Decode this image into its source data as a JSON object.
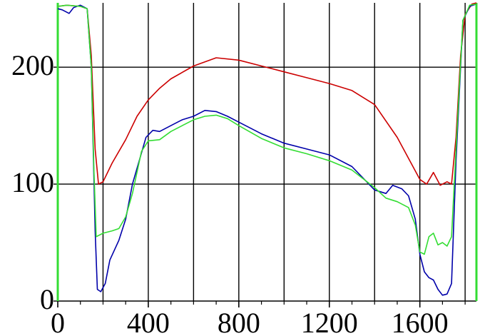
{
  "chart_data": {
    "type": "line",
    "title": "",
    "xlabel": "",
    "ylabel": "",
    "xlim": [
      0,
      1850
    ],
    "ylim": [
      0,
      255
    ],
    "grid": true,
    "x_ticks": [
      0,
      400,
      800,
      1200,
      1600
    ],
    "x_tick_labels": [
      "0",
      "400",
      "800",
      "1200",
      "1600"
    ],
    "x_minor_ticks": [
      100,
      200,
      300,
      500,
      600,
      700,
      900,
      1000,
      1100,
      1300,
      1400,
      1500,
      1700,
      1800
    ],
    "x_gridlines": [
      200,
      400,
      600,
      800,
      1000,
      1200,
      1400,
      1600,
      1800
    ],
    "y_ticks": [
      0,
      100,
      200
    ],
    "y_tick_labels": [
      "0",
      "100",
      "200"
    ],
    "y_gridlines": [
      100,
      200
    ],
    "edge_markers": {
      "color": "#33dd33",
      "x": [
        0,
        1850
      ]
    },
    "series": [
      {
        "color": "#cc0000",
        "points": [
          [
            0,
            252
          ],
          [
            40,
            253
          ],
          [
            100,
            252
          ],
          [
            130,
            250
          ],
          [
            148,
            210
          ],
          [
            165,
            130
          ],
          [
            180,
            100
          ],
          [
            200,
            102
          ],
          [
            240,
            118
          ],
          [
            300,
            138
          ],
          [
            350,
            158
          ],
          [
            400,
            172
          ],
          [
            450,
            182
          ],
          [
            500,
            190
          ],
          [
            600,
            201
          ],
          [
            700,
            208
          ],
          [
            800,
            206
          ],
          [
            900,
            201
          ],
          [
            1000,
            196
          ],
          [
            1100,
            191
          ],
          [
            1200,
            186
          ],
          [
            1300,
            180
          ],
          [
            1400,
            168
          ],
          [
            1500,
            140
          ],
          [
            1600,
            104
          ],
          [
            1630,
            100
          ],
          [
            1660,
            110
          ],
          [
            1690,
            99
          ],
          [
            1720,
            102
          ],
          [
            1740,
            100
          ],
          [
            1760,
            140
          ],
          [
            1780,
            210
          ],
          [
            1800,
            245
          ],
          [
            1830,
            254
          ],
          [
            1850,
            255
          ]
        ]
      },
      {
        "color": "#0000aa",
        "points": [
          [
            0,
            250
          ],
          [
            20,
            249
          ],
          [
            50,
            246
          ],
          [
            70,
            251
          ],
          [
            100,
            253
          ],
          [
            130,
            250
          ],
          [
            148,
            200
          ],
          [
            158,
            120
          ],
          [
            165,
            60
          ],
          [
            175,
            10
          ],
          [
            190,
            8
          ],
          [
            210,
            15
          ],
          [
            230,
            35
          ],
          [
            270,
            52
          ],
          [
            300,
            70
          ],
          [
            330,
            100
          ],
          [
            360,
            120
          ],
          [
            390,
            140
          ],
          [
            420,
            146
          ],
          [
            450,
            145
          ],
          [
            500,
            150
          ],
          [
            550,
            155
          ],
          [
            600,
            158
          ],
          [
            650,
            163
          ],
          [
            700,
            162
          ],
          [
            750,
            158
          ],
          [
            800,
            153
          ],
          [
            900,
            143
          ],
          [
            1000,
            135
          ],
          [
            1100,
            130
          ],
          [
            1200,
            125
          ],
          [
            1300,
            115
          ],
          [
            1400,
            95
          ],
          [
            1450,
            92
          ],
          [
            1480,
            99
          ],
          [
            1520,
            96
          ],
          [
            1550,
            90
          ],
          [
            1580,
            70
          ],
          [
            1600,
            40
          ],
          [
            1620,
            25
          ],
          [
            1640,
            20
          ],
          [
            1660,
            18
          ],
          [
            1680,
            10
          ],
          [
            1700,
            5
          ],
          [
            1720,
            6
          ],
          [
            1740,
            15
          ],
          [
            1760,
            120
          ],
          [
            1790,
            240
          ],
          [
            1820,
            252
          ],
          [
            1850,
            254
          ]
        ]
      },
      {
        "color": "#33dd33",
        "points": [
          [
            0,
            252
          ],
          [
            40,
            253
          ],
          [
            100,
            252
          ],
          [
            130,
            250
          ],
          [
            148,
            200
          ],
          [
            160,
            110
          ],
          [
            170,
            55
          ],
          [
            200,
            58
          ],
          [
            240,
            60
          ],
          [
            270,
            62
          ],
          [
            300,
            72
          ],
          [
            330,
            92
          ],
          [
            370,
            128
          ],
          [
            400,
            137
          ],
          [
            450,
            138
          ],
          [
            500,
            145
          ],
          [
            550,
            150
          ],
          [
            600,
            155
          ],
          [
            650,
            158
          ],
          [
            700,
            159
          ],
          [
            750,
            156
          ],
          [
            800,
            150
          ],
          [
            900,
            139
          ],
          [
            1000,
            131
          ],
          [
            1100,
            126
          ],
          [
            1200,
            120
          ],
          [
            1300,
            112
          ],
          [
            1400,
            97
          ],
          [
            1450,
            88
          ],
          [
            1500,
            85
          ],
          [
            1550,
            80
          ],
          [
            1580,
            65
          ],
          [
            1600,
            42
          ],
          [
            1620,
            40
          ],
          [
            1640,
            55
          ],
          [
            1660,
            58
          ],
          [
            1680,
            48
          ],
          [
            1700,
            50
          ],
          [
            1720,
            47
          ],
          [
            1740,
            55
          ],
          [
            1760,
            130
          ],
          [
            1790,
            240
          ],
          [
            1820,
            253
          ],
          [
            1850,
            254
          ]
        ]
      }
    ]
  }
}
